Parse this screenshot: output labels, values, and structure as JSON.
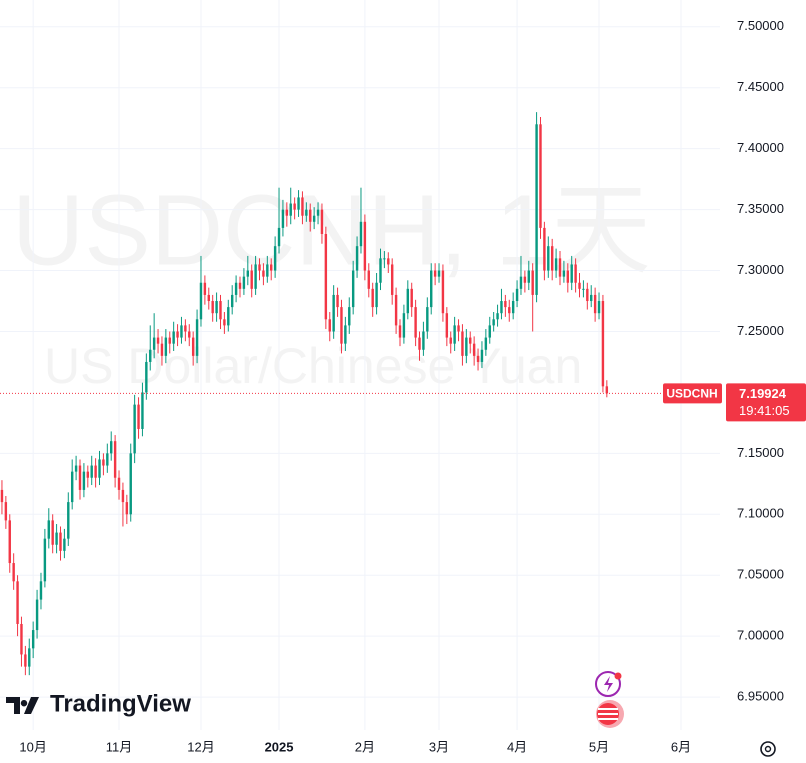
{
  "chart_data": {
    "type": "candlestick",
    "title": "USDCNH, 1天",
    "subtitle": "US Dollar/Chinese Yuan",
    "symbol": "USDCNH",
    "countdown": "19:41:05",
    "brand": "TradingView",
    "up_color": "#089981",
    "down_color": "#f23645",
    "grid": true,
    "xlim": [
      -0.5,
      184
    ],
    "xticks": [
      {
        "value": 8,
        "label": "10月"
      },
      {
        "value": 30,
        "label": "11月"
      },
      {
        "value": 51,
        "label": "12月"
      },
      {
        "value": 71,
        "label": "2025"
      },
      {
        "value": 93,
        "label": "2月"
      },
      {
        "value": 112,
        "label": "3月"
      },
      {
        "value": 132,
        "label": "4月"
      },
      {
        "value": 153,
        "label": "5月"
      },
      {
        "value": 174,
        "label": "6月"
      }
    ],
    "ylim": [
      6.923,
      7.522
    ],
    "yticks": [
      {
        "value": 6.95,
        "label": "6.95000"
      },
      {
        "value": 7.0,
        "label": "7.00000"
      },
      {
        "value": 7.05,
        "label": "7.05000"
      },
      {
        "value": 7.1,
        "label": "7.10000"
      },
      {
        "value": 7.15,
        "label": "7.15000"
      },
      {
        "value": 7.25,
        "label": "7.25000"
      },
      {
        "value": 7.3,
        "label": "7.30000"
      },
      {
        "value": 7.35,
        "label": "7.35000"
      },
      {
        "value": 7.4,
        "label": "7.40000"
      },
      {
        "value": 7.45,
        "label": "7.45000"
      },
      {
        "value": 7.5,
        "label": "7.50000"
      }
    ],
    "ohlc": [
      [
        7.12,
        7.128,
        7.1,
        7.11
      ],
      [
        7.11,
        7.115,
        7.088,
        7.095
      ],
      [
        7.095,
        7.1,
        7.052,
        7.06
      ],
      [
        7.06,
        7.068,
        7.038,
        7.045
      ],
      [
        7.045,
        7.05,
        7.0,
        7.01
      ],
      [
        7.01,
        7.016,
        6.975,
        6.985
      ],
      [
        6.985,
        6.992,
        6.968,
        6.975
      ],
      [
        6.975,
        6.998,
        6.968,
        6.99
      ],
      [
        6.99,
        7.012,
        6.982,
        7.005
      ],
      [
        7.005,
        7.038,
        6.998,
        7.03
      ],
      [
        7.03,
        7.052,
        7.022,
        7.045
      ],
      [
        7.045,
        7.088,
        7.04,
        7.08
      ],
      [
        7.08,
        7.105,
        7.072,
        7.095
      ],
      [
        7.095,
        7.1,
        7.068,
        7.075
      ],
      [
        7.075,
        7.092,
        7.068,
        7.085
      ],
      [
        7.085,
        7.09,
        7.062,
        7.07
      ],
      [
        7.07,
        7.088,
        7.064,
        7.08
      ],
      [
        7.08,
        7.118,
        7.074,
        7.11
      ],
      [
        7.11,
        7.145,
        7.104,
        7.135
      ],
      [
        7.135,
        7.148,
        7.128,
        7.14
      ],
      [
        7.14,
        7.145,
        7.112,
        7.12
      ],
      [
        7.12,
        7.142,
        7.114,
        7.135
      ],
      [
        7.135,
        7.14,
        7.122,
        7.13
      ],
      [
        7.13,
        7.148,
        7.124,
        7.14
      ],
      [
        7.14,
        7.146,
        7.122,
        7.13
      ],
      [
        7.13,
        7.152,
        7.124,
        7.145
      ],
      [
        7.145,
        7.15,
        7.132,
        7.14
      ],
      [
        7.14,
        7.158,
        7.134,
        7.15
      ],
      [
        7.15,
        7.168,
        7.144,
        7.16
      ],
      [
        7.16,
        7.165,
        7.122,
        7.13
      ],
      [
        7.13,
        7.136,
        7.112,
        7.12
      ],
      [
        7.12,
        7.126,
        7.09,
        7.11
      ],
      [
        7.11,
        7.116,
        7.092,
        7.1
      ],
      [
        7.1,
        7.158,
        7.094,
        7.15
      ],
      [
        7.15,
        7.198,
        7.142,
        7.19
      ],
      [
        7.19,
        7.196,
        7.162,
        7.17
      ],
      [
        7.17,
        7.208,
        7.164,
        7.2
      ],
      [
        7.2,
        7.232,
        7.194,
        7.225
      ],
      [
        7.225,
        7.255,
        7.218,
        7.235
      ],
      [
        7.235,
        7.265,
        7.228,
        7.245
      ],
      [
        7.245,
        7.252,
        7.232,
        7.24
      ],
      [
        7.24,
        7.246,
        7.222,
        7.23
      ],
      [
        7.23,
        7.252,
        7.224,
        7.245
      ],
      [
        7.245,
        7.25,
        7.232,
        7.24
      ],
      [
        7.24,
        7.258,
        7.234,
        7.25
      ],
      [
        7.25,
        7.256,
        7.238,
        7.245
      ],
      [
        7.245,
        7.262,
        7.24,
        7.255
      ],
      [
        7.255,
        7.26,
        7.242,
        7.25
      ],
      [
        7.25,
        7.256,
        7.238,
        7.245
      ],
      [
        7.245,
        7.25,
        7.222,
        7.23
      ],
      [
        7.23,
        7.268,
        7.224,
        7.26
      ],
      [
        7.26,
        7.312,
        7.254,
        7.29
      ],
      [
        7.29,
        7.296,
        7.272,
        7.28
      ],
      [
        7.28,
        7.286,
        7.268,
        7.275
      ],
      [
        7.275,
        7.28,
        7.258,
        7.265
      ],
      [
        7.265,
        7.282,
        7.258,
        7.275
      ],
      [
        7.275,
        7.28,
        7.252,
        7.26
      ],
      [
        7.26,
        7.266,
        7.248,
        7.255
      ],
      [
        7.255,
        7.276,
        7.25,
        7.27
      ],
      [
        7.27,
        7.288,
        7.264,
        7.28
      ],
      [
        7.28,
        7.296,
        7.274,
        7.29
      ],
      [
        7.29,
        7.295,
        7.278,
        7.285
      ],
      [
        7.285,
        7.302,
        7.28,
        7.295
      ],
      [
        7.295,
        7.312,
        7.288,
        7.3
      ],
      [
        7.3,
        7.305,
        7.278,
        7.285
      ],
      [
        7.285,
        7.312,
        7.28,
        7.305
      ],
      [
        7.305,
        7.31,
        7.292,
        7.3
      ],
      [
        7.3,
        7.306,
        7.288,
        7.295
      ],
      [
        7.295,
        7.312,
        7.29,
        7.305
      ],
      [
        7.305,
        7.31,
        7.292,
        7.3
      ],
      [
        7.3,
        7.328,
        7.294,
        7.32
      ],
      [
        7.32,
        7.368,
        7.314,
        7.335
      ],
      [
        7.335,
        7.358,
        7.328,
        7.35
      ],
      [
        7.35,
        7.356,
        7.336,
        7.345
      ],
      [
        7.345,
        7.368,
        7.338,
        7.355
      ],
      [
        7.355,
        7.36,
        7.342,
        7.35
      ],
      [
        7.35,
        7.366,
        7.344,
        7.36
      ],
      [
        7.36,
        7.365,
        7.338,
        7.345
      ],
      [
        7.345,
        7.356,
        7.34,
        7.35
      ],
      [
        7.35,
        7.355,
        7.332,
        7.34
      ],
      [
        7.34,
        7.352,
        7.334,
        7.345
      ],
      [
        7.345,
        7.356,
        7.338,
        7.35
      ],
      [
        7.35,
        7.355,
        7.322,
        7.33
      ],
      [
        7.33,
        7.336,
        7.252,
        7.26
      ],
      [
        7.26,
        7.266,
        7.242,
        7.25
      ],
      [
        7.25,
        7.288,
        7.244,
        7.28
      ],
      [
        7.28,
        7.286,
        7.262,
        7.27
      ],
      [
        7.27,
        7.276,
        7.232,
        7.24
      ],
      [
        7.24,
        7.262,
        7.234,
        7.255
      ],
      [
        7.255,
        7.278,
        7.248,
        7.27
      ],
      [
        7.27,
        7.308,
        7.264,
        7.3
      ],
      [
        7.3,
        7.328,
        7.294,
        7.32
      ],
      [
        7.32,
        7.368,
        7.314,
        7.34
      ],
      [
        7.34,
        7.346,
        7.292,
        7.3
      ],
      [
        7.3,
        7.306,
        7.278,
        7.285
      ],
      [
        7.285,
        7.29,
        7.262,
        7.27
      ],
      [
        7.27,
        7.298,
        7.264,
        7.29
      ],
      [
        7.29,
        7.318,
        7.284,
        7.31
      ],
      [
        7.31,
        7.316,
        7.302,
        7.31
      ],
      [
        7.31,
        7.315,
        7.298,
        7.305
      ],
      [
        7.305,
        7.31,
        7.272,
        7.28
      ],
      [
        7.28,
        7.286,
        7.248,
        7.255
      ],
      [
        7.255,
        7.26,
        7.238,
        7.245
      ],
      [
        7.245,
        7.272,
        7.24,
        7.265
      ],
      [
        7.265,
        7.292,
        7.26,
        7.285
      ],
      [
        7.285,
        7.29,
        7.262,
        7.27
      ],
      [
        7.27,
        7.276,
        7.238,
        7.245
      ],
      [
        7.245,
        7.25,
        7.226,
        7.235
      ],
      [
        7.235,
        7.258,
        7.23,
        7.25
      ],
      [
        7.25,
        7.278,
        7.244,
        7.27
      ],
      [
        7.27,
        7.306,
        7.264,
        7.3
      ],
      [
        7.3,
        7.306,
        7.288,
        7.295
      ],
      [
        7.295,
        7.306,
        7.29,
        7.3
      ],
      [
        7.3,
        7.305,
        7.258,
        7.265
      ],
      [
        7.265,
        7.27,
        7.238,
        7.245
      ],
      [
        7.245,
        7.25,
        7.232,
        7.24
      ],
      [
        7.24,
        7.262,
        7.234,
        7.255
      ],
      [
        7.255,
        7.26,
        7.242,
        7.25
      ],
      [
        7.25,
        7.256,
        7.222,
        7.23
      ],
      [
        7.23,
        7.252,
        7.224,
        7.245
      ],
      [
        7.245,
        7.25,
        7.232,
        7.24
      ],
      [
        7.24,
        7.246,
        7.222,
        7.23
      ],
      [
        7.23,
        7.236,
        7.218,
        7.225
      ],
      [
        7.225,
        7.242,
        7.22,
        7.235
      ],
      [
        7.235,
        7.252,
        7.23,
        7.245
      ],
      [
        7.245,
        7.262,
        7.24,
        7.255
      ],
      [
        7.255,
        7.266,
        7.25,
        7.26
      ],
      [
        7.26,
        7.272,
        7.254,
        7.265
      ],
      [
        7.265,
        7.285,
        7.26,
        7.275
      ],
      [
        7.275,
        7.28,
        7.262,
        7.27
      ],
      [
        7.27,
        7.276,
        7.258,
        7.265
      ],
      [
        7.265,
        7.282,
        7.26,
        7.275
      ],
      [
        7.275,
        7.292,
        7.27,
        7.285
      ],
      [
        7.285,
        7.312,
        7.28,
        7.295
      ],
      [
        7.295,
        7.3,
        7.282,
        7.29
      ],
      [
        7.29,
        7.308,
        7.284,
        7.3
      ],
      [
        7.3,
        7.306,
        7.25,
        7.28
      ],
      [
        7.28,
        7.43,
        7.274,
        7.42
      ],
      [
        7.42,
        7.426,
        7.326,
        7.335
      ],
      [
        7.335,
        7.34,
        7.292,
        7.3
      ],
      [
        7.3,
        7.328,
        7.294,
        7.32
      ],
      [
        7.32,
        7.326,
        7.292,
        7.3
      ],
      [
        7.3,
        7.318,
        7.294,
        7.31
      ],
      [
        7.31,
        7.316,
        7.288,
        7.295
      ],
      [
        7.295,
        7.308,
        7.29,
        7.3
      ],
      [
        7.3,
        7.306,
        7.282,
        7.29
      ],
      [
        7.29,
        7.312,
        7.284,
        7.305
      ],
      [
        7.305,
        7.31,
        7.282,
        7.29
      ],
      [
        7.29,
        7.298,
        7.278,
        7.285
      ],
      [
        7.285,
        7.292,
        7.278,
        7.285
      ],
      [
        7.285,
        7.29,
        7.268,
        7.275
      ],
      [
        7.275,
        7.288,
        7.27,
        7.28
      ],
      [
        7.28,
        7.286,
        7.258,
        7.265
      ],
      [
        7.265,
        7.282,
        7.26,
        7.275
      ],
      [
        7.275,
        7.28,
        7.2,
        7.205
      ],
      [
        7.205,
        7.21,
        7.196,
        7.19924
      ]
    ]
  }
}
